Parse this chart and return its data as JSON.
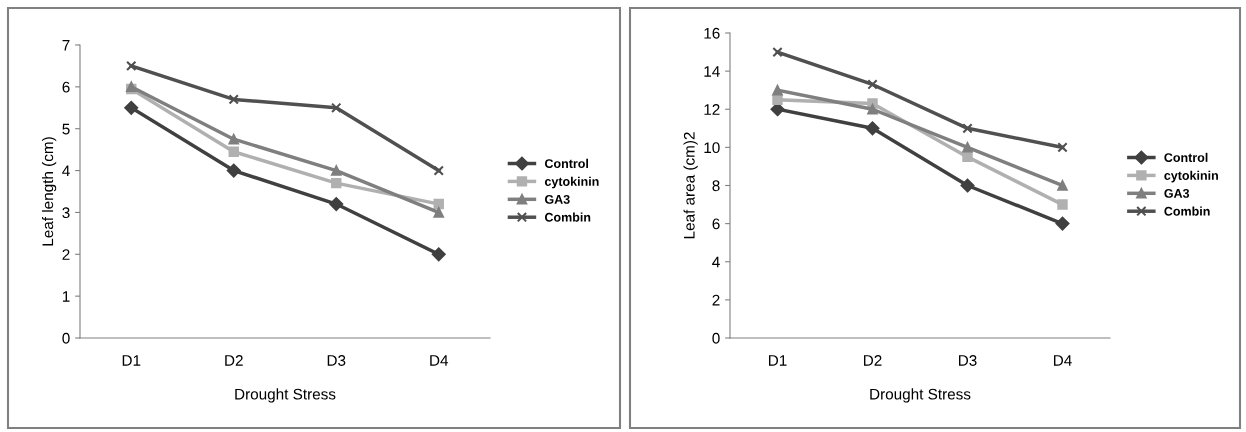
{
  "chart_data": [
    {
      "type": "line",
      "xlabel": "Drought Stress",
      "ylabel": "Leaf length (cm)",
      "categories": [
        "D1",
        "D2",
        "D3",
        "D4"
      ],
      "ylim": [
        0,
        7
      ],
      "yticks": [
        0,
        1,
        2,
        3,
        4,
        5,
        6,
        7
      ],
      "grid": false,
      "legend": "right",
      "line_style": "solid",
      "series": [
        {
          "name": "Control",
          "color": "#404040",
          "marker": "diamond",
          "values": [
            5.5,
            4.0,
            3.2,
            2.0
          ]
        },
        {
          "name": "cytokinin",
          "color": "#b0b0b0",
          "marker": "square",
          "values": [
            5.95,
            4.45,
            3.7,
            3.2
          ]
        },
        {
          "name": "GA3",
          "color": "#7f7f7f",
          "marker": "triangle",
          "values": [
            6.0,
            4.75,
            4.0,
            3.0
          ]
        },
        {
          "name": "Combin",
          "color": "#505050",
          "marker": "cross",
          "values": [
            6.5,
            5.7,
            5.5,
            4.0
          ]
        }
      ]
    },
    {
      "type": "line",
      "xlabel": "Drought Stress",
      "ylabel": "Leaf area (cm)2",
      "categories": [
        "D1",
        "D2",
        "D3",
        "D4"
      ],
      "ylim": [
        0,
        16
      ],
      "yticks": [
        0,
        2,
        4,
        6,
        8,
        10,
        12,
        14,
        16
      ],
      "grid": false,
      "legend": "right",
      "line_style": "solid",
      "series": [
        {
          "name": "Control",
          "color": "#404040",
          "marker": "diamond",
          "values": [
            12,
            11,
            8,
            6
          ]
        },
        {
          "name": "cytokinin",
          "color": "#b0b0b0",
          "marker": "square",
          "values": [
            12.5,
            12.3,
            9.5,
            7
          ]
        },
        {
          "name": "GA3",
          "color": "#7f7f7f",
          "marker": "triangle",
          "values": [
            13,
            12,
            10,
            8
          ]
        },
        {
          "name": "Combin",
          "color": "#505050",
          "marker": "cross",
          "values": [
            15,
            13.3,
            11,
            10
          ]
        }
      ]
    }
  ]
}
